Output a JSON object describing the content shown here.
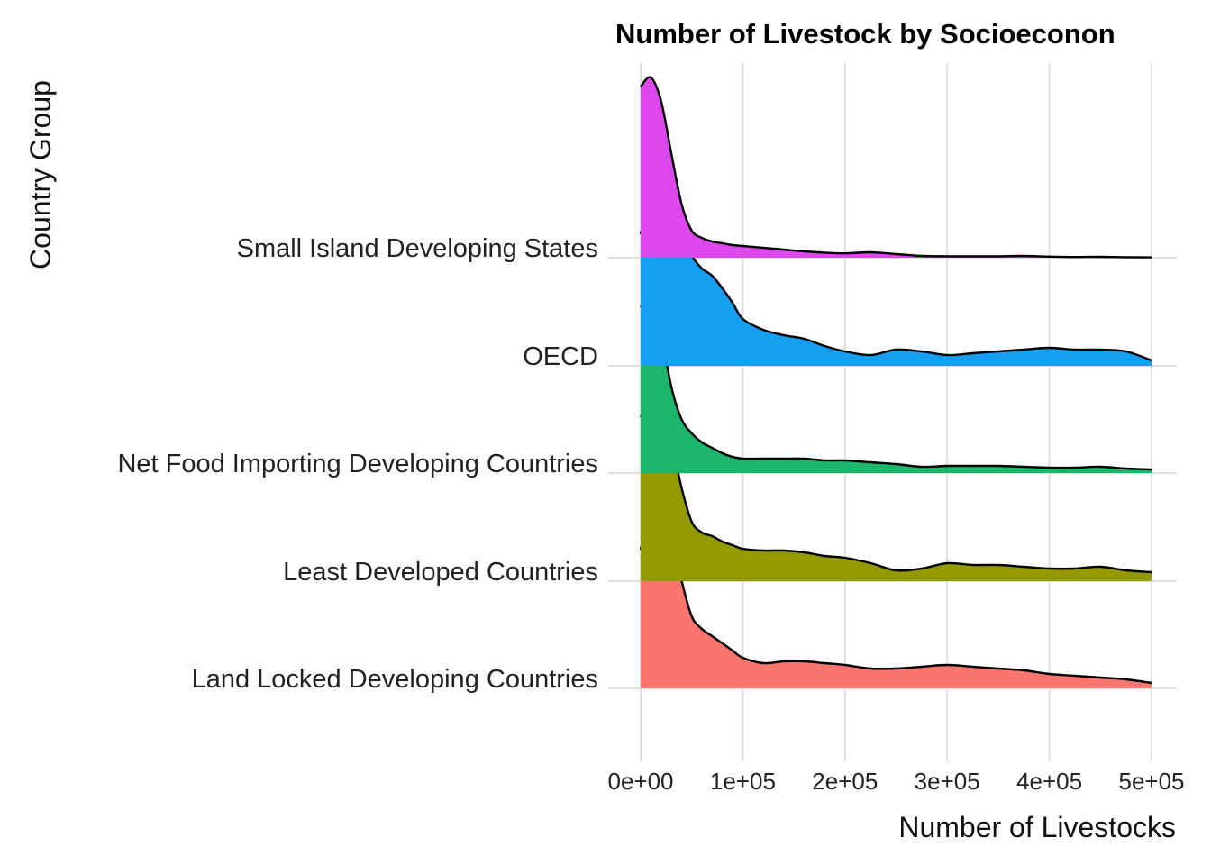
{
  "chart_data": {
    "type": "area",
    "subtype": "ridgeline",
    "title": "Number of Livestock by Socioeconon",
    "xlabel": "Number of Livestocks",
    "ylabel": "Country Group",
    "xlim": [
      0,
      500000
    ],
    "x_ticks": [
      0,
      100000,
      200000,
      300000,
      400000,
      500000
    ],
    "x_tick_labels": [
      "0e+00",
      "1e+05",
      "2e+05",
      "3e+05",
      "4e+05",
      "5e+05"
    ],
    "grid": true,
    "legend": "none",
    "x": [
      0,
      10000,
      20000,
      30000,
      40000,
      50000,
      60000,
      70000,
      80000,
      90000,
      100000,
      120000,
      140000,
      160000,
      180000,
      200000,
      225000,
      250000,
      275000,
      300000,
      325000,
      350000,
      375000,
      400000,
      425000,
      450000,
      475000,
      500000
    ],
    "series": [
      {
        "name": "Land Locked Developing Countries",
        "color": "#F8766D",
        "values": [
          0.77,
          0.99,
          1.0,
          0.86,
          0.6,
          0.4,
          0.33,
          0.29,
          0.25,
          0.21,
          0.17,
          0.14,
          0.15,
          0.15,
          0.14,
          0.13,
          0.11,
          0.11,
          0.12,
          0.13,
          0.12,
          0.11,
          0.1,
          0.08,
          0.07,
          0.06,
          0.05,
          0.03
        ]
      },
      {
        "name": "Least Developed Countries",
        "color": "#939900",
        "values": [
          0.91,
          1.0,
          0.98,
          0.78,
          0.52,
          0.33,
          0.27,
          0.25,
          0.22,
          0.2,
          0.18,
          0.17,
          0.17,
          0.16,
          0.14,
          0.13,
          0.1,
          0.06,
          0.07,
          0.1,
          0.09,
          0.09,
          0.08,
          0.07,
          0.07,
          0.08,
          0.06,
          0.05
        ]
      },
      {
        "name": "Net Food Importing Developing Countries",
        "color": "#1BB56B",
        "values": [
          0.92,
          1.0,
          0.78,
          0.48,
          0.3,
          0.22,
          0.17,
          0.14,
          0.11,
          0.09,
          0.08,
          0.08,
          0.08,
          0.08,
          0.07,
          0.07,
          0.06,
          0.05,
          0.035,
          0.04,
          0.04,
          0.04,
          0.035,
          0.03,
          0.03,
          0.035,
          0.025,
          0.02
        ]
      },
      {
        "name": "OECD",
        "color": "#169EF0",
        "values": [
          0.73,
          0.95,
          0.98,
          0.85,
          0.74,
          0.61,
          0.54,
          0.5,
          0.43,
          0.35,
          0.26,
          0.2,
          0.17,
          0.15,
          0.11,
          0.08,
          0.06,
          0.09,
          0.08,
          0.06,
          0.07,
          0.08,
          0.09,
          0.1,
          0.09,
          0.09,
          0.08,
          0.03
        ]
      },
      {
        "name": "Small Island Developing States",
        "color": "#DC48EC",
        "values": [
          0.95,
          1.0,
          0.87,
          0.58,
          0.3,
          0.15,
          0.11,
          0.09,
          0.08,
          0.07,
          0.065,
          0.055,
          0.045,
          0.035,
          0.028,
          0.024,
          0.03,
          0.02,
          0.01,
          0.008,
          0.008,
          0.008,
          0.01,
          0.006,
          0.004,
          0.005,
          0.003,
          0.002
        ]
      }
    ]
  }
}
